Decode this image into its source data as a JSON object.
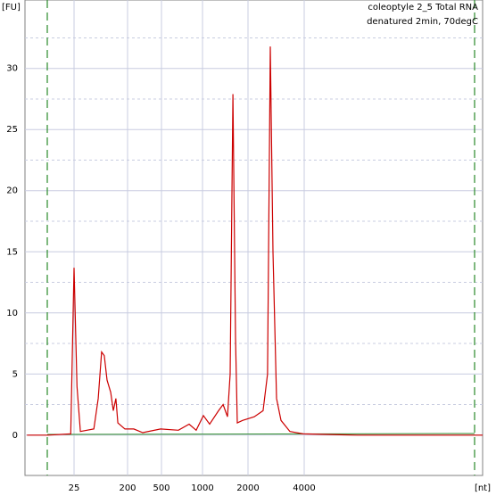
{
  "chart_data": {
    "type": "line",
    "y_label": "[FU]",
    "x_label": "[nt]",
    "annotations": [
      "coleoptyle 2_5 Total RNA",
      "denatured 2min, 70degC"
    ],
    "x": [
      4,
      9,
      22,
      25,
      28,
      32,
      54,
      64,
      73,
      81,
      90,
      104,
      115,
      127,
      137,
      180,
      237,
      301,
      488,
      666,
      798,
      899,
      1014,
      1115,
      1277,
      1368,
      1463,
      1524,
      1589,
      1653,
      1700,
      1842,
      2160,
      2409,
      2545,
      2632,
      2722,
      2844,
      3004,
      3356,
      3954,
      7660,
      35700
    ],
    "series": [
      {
        "color": "#cc0000",
        "values": [
          0,
          0,
          0.1,
          13.7,
          4,
          0.3,
          0.5,
          3,
          6.8,
          6.5,
          4.5,
          3.5,
          2,
          3,
          1,
          0.5,
          0.5,
          0.2,
          0.5,
          0.4,
          0.9,
          0.4,
          1.6,
          0.9,
          2,
          2.5,
          1.5,
          5,
          27.9,
          8,
          1,
          1.2,
          1.5,
          2,
          5,
          31.8,
          15,
          3,
          1.2,
          0.3,
          0.1,
          0,
          0
        ]
      }
    ],
    "xlim": [
      3.7,
      35700
    ],
    "xticks": [
      25,
      200,
      500,
      1000,
      2000,
      4000
    ],
    "xscale": "log-piecewise",
    "ylim": [
      -3.3,
      35.6
    ],
    "yticks": [
      0,
      5,
      10,
      15,
      20,
      25,
      30
    ],
    "grid": true
  }
}
